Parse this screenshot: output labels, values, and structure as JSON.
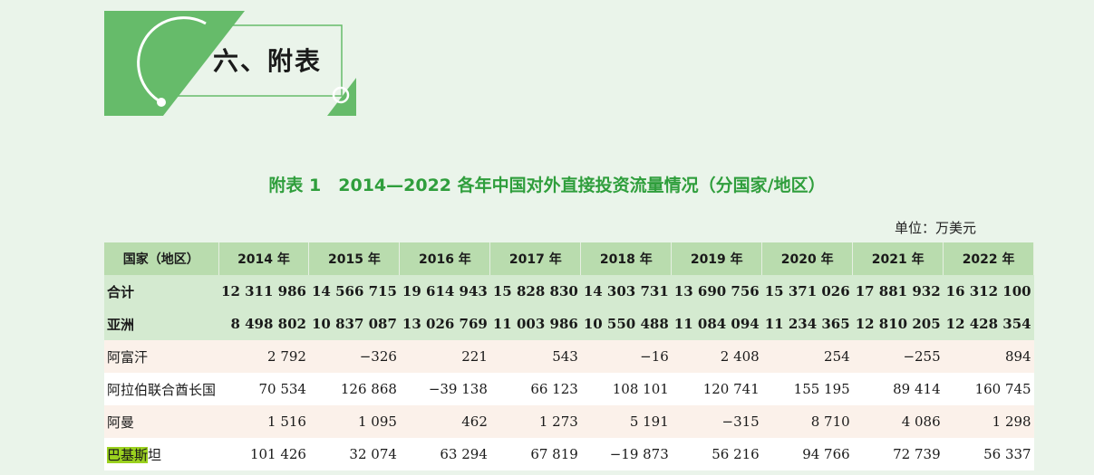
{
  "section": {
    "title": "六、附表"
  },
  "table": {
    "title": "附表 1　2014—2022 各年中国对外直接投资流量情况（分国家/地区）",
    "unit": "单位：万美元",
    "headers": [
      "国家（地区）",
      "2014 年",
      "2015 年",
      "2016 年",
      "2017 年",
      "2018 年",
      "2019 年",
      "2020 年",
      "2021 年",
      "2022 年"
    ],
    "rows": [
      {
        "name": "合计",
        "values": [
          "12 311 986",
          "14 566 715",
          "19 614 943",
          "15 828 830",
          "14 303 731",
          "13 690 756",
          "15 371 026",
          "17 881 932",
          "16 312 100"
        ]
      },
      {
        "name": "亚洲",
        "values": [
          "8 498 802",
          "10 837 087",
          "13 026 769",
          "11 003 986",
          "10 550 488",
          "11 084 094",
          "11 234 365",
          "12 810 205",
          "12 428 354"
        ]
      },
      {
        "name": "阿富汗",
        "values": [
          "2 792",
          "−326",
          "221",
          "543",
          "−16",
          "2 408",
          "254",
          "−255",
          "894"
        ]
      },
      {
        "name": "阿拉伯联合酋长国",
        "values": [
          "70 534",
          "126 868",
          "−39 138",
          "66 123",
          "108 101",
          "120 741",
          "155 195",
          "89 414",
          "160 745"
        ]
      },
      {
        "name": "阿曼",
        "values": [
          "1 516",
          "1 095",
          "462",
          "1 273",
          "5 191",
          "−315",
          "8 710",
          "4 086",
          "1 298"
        ]
      },
      {
        "name_highlight": "巴基斯",
        "name_rest": "坦",
        "values": [
          "101 426",
          "32 074",
          "63 294",
          "67 819",
          "−19 873",
          "56 216",
          "94 766",
          "72 739",
          "56 337"
        ]
      }
    ]
  },
  "colors": {
    "accent_green": "#5cb85c",
    "title_green": "#2f9e3c",
    "header_bg": "#b9dcae",
    "highlight": "#9bd11f"
  }
}
